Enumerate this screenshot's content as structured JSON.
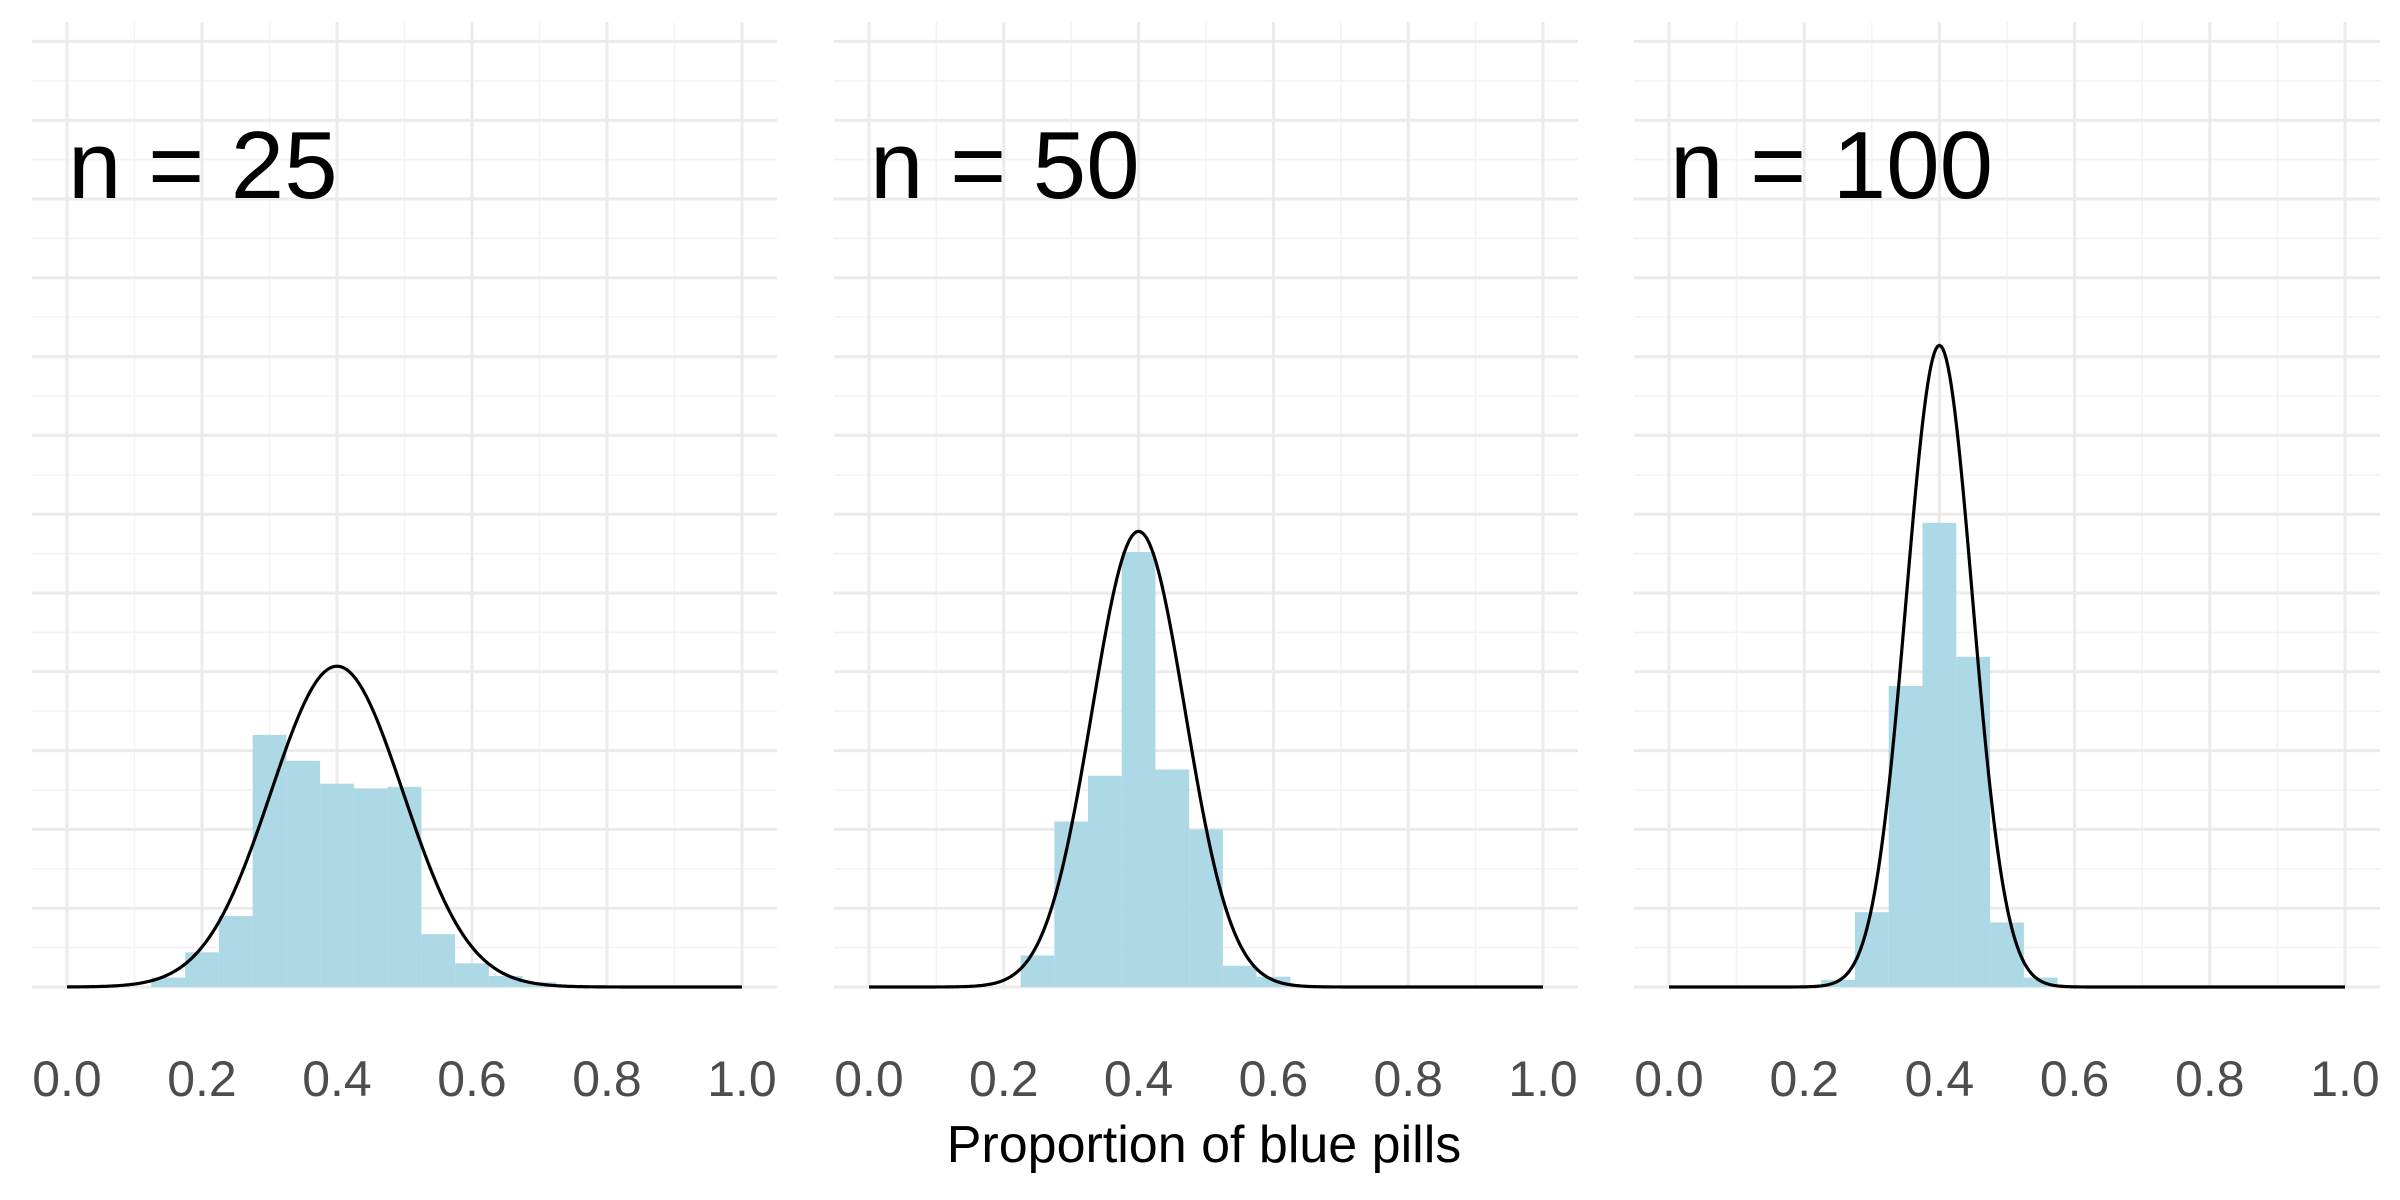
{
  "chart_data": {
    "type": "bar",
    "xlabel": "Proportion of blue pills",
    "ylabel": "",
    "xlim": [
      0,
      1
    ],
    "x_ticks": [
      "0.0",
      "0.2",
      "0.4",
      "0.6",
      "0.8",
      "1.0"
    ],
    "y_ticks_visible": false,
    "grid": true,
    "bar_color": "#add8e6",
    "curve_color": "#000000",
    "bin_width": 0.05,
    "normal_mean": 0.4,
    "panels": [
      {
        "label": "n = 25",
        "n": 25,
        "curve_sd": 0.098,
        "bins": [
          {
            "x": 0.15,
            "density": 0.12
          },
          {
            "x": 0.2,
            "density": 0.44
          },
          {
            "x": 0.25,
            "density": 0.9
          },
          {
            "x": 0.3,
            "density": 3.2
          },
          {
            "x": 0.35,
            "density": 2.87
          },
          {
            "x": 0.4,
            "density": 2.58
          },
          {
            "x": 0.45,
            "density": 2.52
          },
          {
            "x": 0.5,
            "density": 2.54
          },
          {
            "x": 0.55,
            "density": 0.67
          },
          {
            "x": 0.6,
            "density": 0.3
          },
          {
            "x": 0.65,
            "density": 0.14
          },
          {
            "x": 0.7,
            "density": 0.06
          }
        ]
      },
      {
        "label": "n = 50",
        "n": 50,
        "curve_sd": 0.069,
        "bins": [
          {
            "x": 0.25,
            "density": 0.4
          },
          {
            "x": 0.3,
            "density": 2.1
          },
          {
            "x": 0.35,
            "density": 2.68
          },
          {
            "x": 0.4,
            "density": 5.52
          },
          {
            "x": 0.45,
            "density": 2.76
          },
          {
            "x": 0.5,
            "density": 2.0
          },
          {
            "x": 0.55,
            "density": 0.27
          },
          {
            "x": 0.6,
            "density": 0.13
          }
        ]
      },
      {
        "label": "n = 100",
        "n": 100,
        "curve_sd": 0.049,
        "bins": [
          {
            "x": 0.25,
            "density": 0.09
          },
          {
            "x": 0.3,
            "density": 0.95
          },
          {
            "x": 0.35,
            "density": 3.82
          },
          {
            "x": 0.4,
            "density": 5.89
          },
          {
            "x": 0.45,
            "density": 4.19
          },
          {
            "x": 0.5,
            "density": 0.82
          },
          {
            "x": 0.55,
            "density": 0.12
          }
        ]
      }
    ]
  }
}
